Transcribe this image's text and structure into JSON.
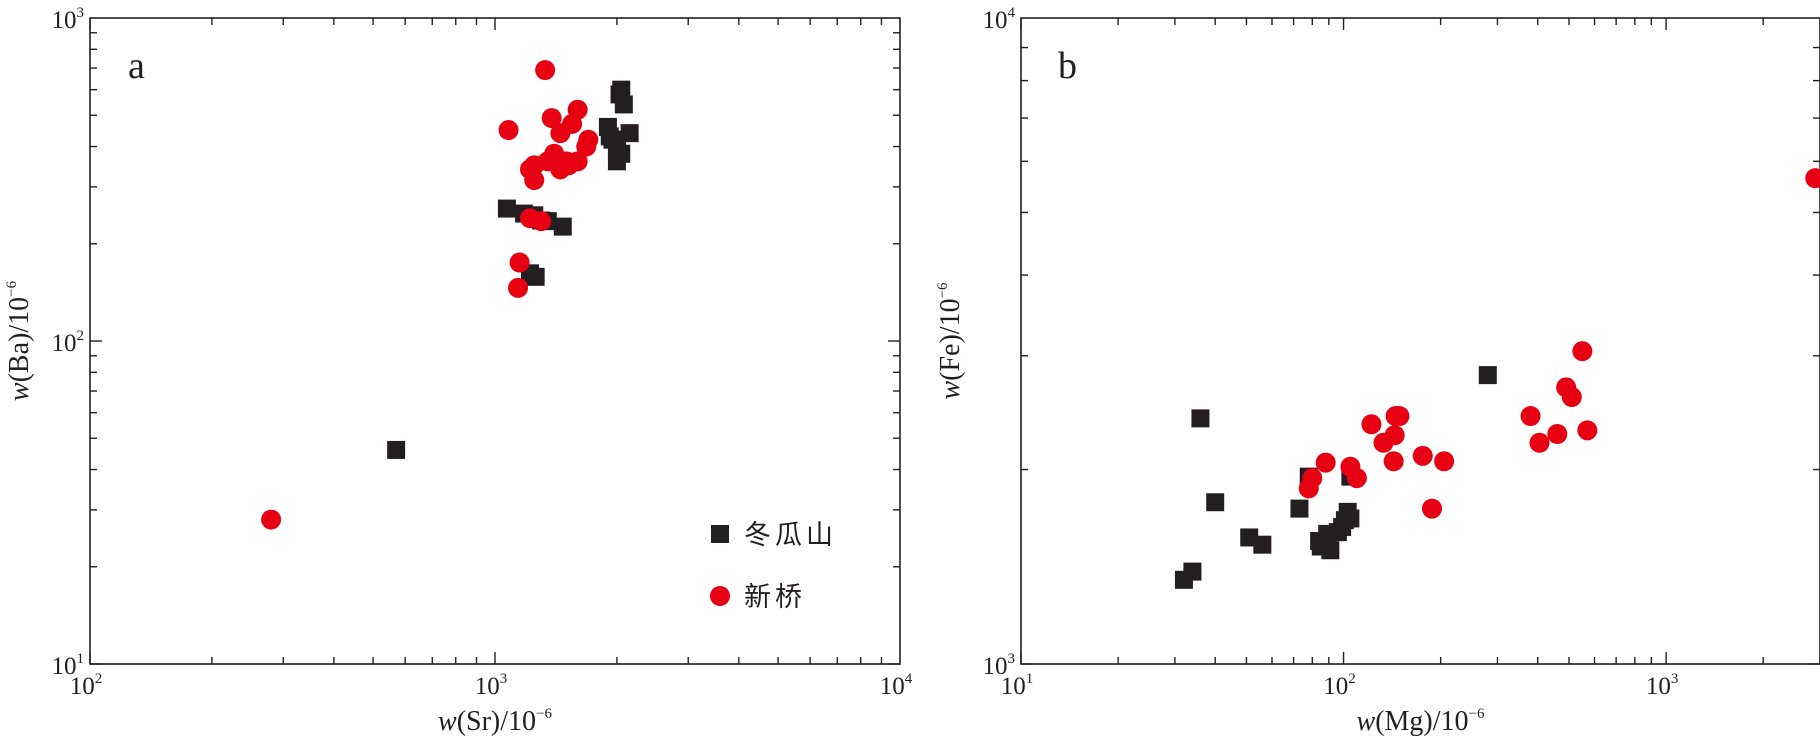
{
  "colors": {
    "dongguashan": "#231f20",
    "xinqiao": "#e60012",
    "axis": "#231f20"
  },
  "legend": [
    {
      "key": "dongguashan",
      "label": "冬瓜山",
      "marker": "square"
    },
    {
      "key": "xinqiao",
      "label": "新桥",
      "marker": "circle"
    }
  ],
  "chart_data": [
    {
      "type": "scatter",
      "panel_label": "a",
      "xlabel": {
        "italic": "w",
        "rest": "(Sr)/10",
        "exp": "−6"
      },
      "ylabel": {
        "italic": "w",
        "rest": "(Ba)/10",
        "exp": "−6"
      },
      "xscale": "log",
      "yscale": "log",
      "xlim": [
        100,
        10000
      ],
      "ylim": [
        10,
        1000
      ],
      "xticks": [
        {
          "v": 100,
          "b": "10",
          "e": "2"
        },
        {
          "v": 1000,
          "b": "10",
          "e": "3"
        },
        {
          "v": 10000,
          "b": "10",
          "e": "4"
        }
      ],
      "yticks": [
        {
          "v": 10,
          "b": "10",
          "e": "1"
        },
        {
          "v": 100,
          "b": "10",
          "e": "2"
        },
        {
          "v": 1000,
          "b": "10",
          "e": "3"
        }
      ],
      "legend_position": "bottom-right",
      "series": [
        {
          "name": "冬瓜山",
          "key": "dongguashan",
          "marker": "square",
          "points": [
            [
              570,
              46
            ],
            [
              1070,
              257
            ],
            [
              1180,
              248
            ],
            [
              1250,
              245
            ],
            [
              1300,
              236
            ],
            [
              1350,
              235
            ],
            [
              1470,
              226
            ],
            [
              1220,
              162
            ],
            [
              1260,
              158
            ],
            [
              1900,
              460
            ],
            [
              1920,
              430
            ],
            [
              1950,
              420
            ],
            [
              2000,
              400
            ],
            [
              2050,
              380
            ],
            [
              2000,
              360
            ],
            [
              2050,
              600
            ],
            [
              2030,
              580
            ],
            [
              2080,
              540
            ],
            [
              2150,
              440
            ]
          ]
        },
        {
          "name": "新桥",
          "key": "xinqiao",
          "marker": "circle",
          "points": [
            [
              280,
              28
            ],
            [
              1080,
              450
            ],
            [
              1330,
              690
            ],
            [
              1380,
              490
            ],
            [
              1450,
              440
            ],
            [
              1600,
              520
            ],
            [
              1550,
              470
            ],
            [
              1400,
              380
            ],
            [
              1600,
              360
            ],
            [
              1700,
              420
            ],
            [
              1680,
              400
            ],
            [
              1350,
              360
            ],
            [
              1250,
              350
            ],
            [
              1220,
              340
            ],
            [
              1450,
              340
            ],
            [
              1500,
              360
            ],
            [
              1520,
              350
            ],
            [
              1250,
              315
            ],
            [
              1220,
              240
            ],
            [
              1300,
              235
            ],
            [
              1150,
              175
            ],
            [
              1140,
              146
            ]
          ]
        }
      ]
    },
    {
      "type": "scatter",
      "panel_label": "b",
      "xlabel": {
        "italic": "w",
        "rest": "(Mg)/10",
        "exp": "−6"
      },
      "ylabel": {
        "italic": "w",
        "rest": "(Fe)/10",
        "exp": "−6"
      },
      "xscale": "log",
      "yscale": "log",
      "xlim": [
        10,
        3000
      ],
      "ylim": [
        1000,
        10000
      ],
      "xticks": [
        {
          "v": 10,
          "b": "10",
          "e": "1"
        },
        {
          "v": 100,
          "b": "10",
          "e": "2"
        },
        {
          "v": 1000,
          "b": "10",
          "e": "3"
        }
      ],
      "yticks": [
        {
          "v": 1000,
          "b": "10",
          "e": "3"
        },
        {
          "v": 10000,
          "b": "10",
          "e": "4"
        }
      ],
      "series": [
        {
          "name": "冬瓜山",
          "key": "dongguashan",
          "marker": "square",
          "points": [
            [
              32,
              1350
            ],
            [
              34,
              1390
            ],
            [
              36,
              2400
            ],
            [
              40,
              1780
            ],
            [
              51,
              1570
            ],
            [
              56,
              1530
            ],
            [
              73,
              1740
            ],
            [
              78,
              1950
            ],
            [
              84,
              1550
            ],
            [
              85,
              1520
            ],
            [
              89,
              1590
            ],
            [
              91,
              1500
            ],
            [
              96,
              1600
            ],
            [
              99,
              1630
            ],
            [
              101,
              1670
            ],
            [
              103,
              1720
            ],
            [
              105,
              1680
            ],
            [
              105,
              1950
            ],
            [
              280,
              2800
            ]
          ]
        },
        {
          "name": "新桥",
          "key": "xinqiao",
          "marker": "circle",
          "points": [
            [
              78,
              1870
            ],
            [
              80,
              1940
            ],
            [
              88,
              2050
            ],
            [
              105,
              2020
            ],
            [
              110,
              1940
            ],
            [
              122,
              2350
            ],
            [
              133,
              2200
            ],
            [
              143,
              2060
            ],
            [
              144,
              2260
            ],
            [
              145,
              2420
            ],
            [
              149,
              2420
            ],
            [
              176,
              2100
            ],
            [
              188,
              1740
            ],
            [
              205,
              2060
            ],
            [
              380,
              2420
            ],
            [
              405,
              2200
            ],
            [
              460,
              2270
            ],
            [
              490,
              2680
            ],
            [
              510,
              2590
            ],
            [
              550,
              3050
            ],
            [
              570,
              2300
            ],
            [
              2900,
              5650
            ]
          ]
        }
      ]
    }
  ]
}
